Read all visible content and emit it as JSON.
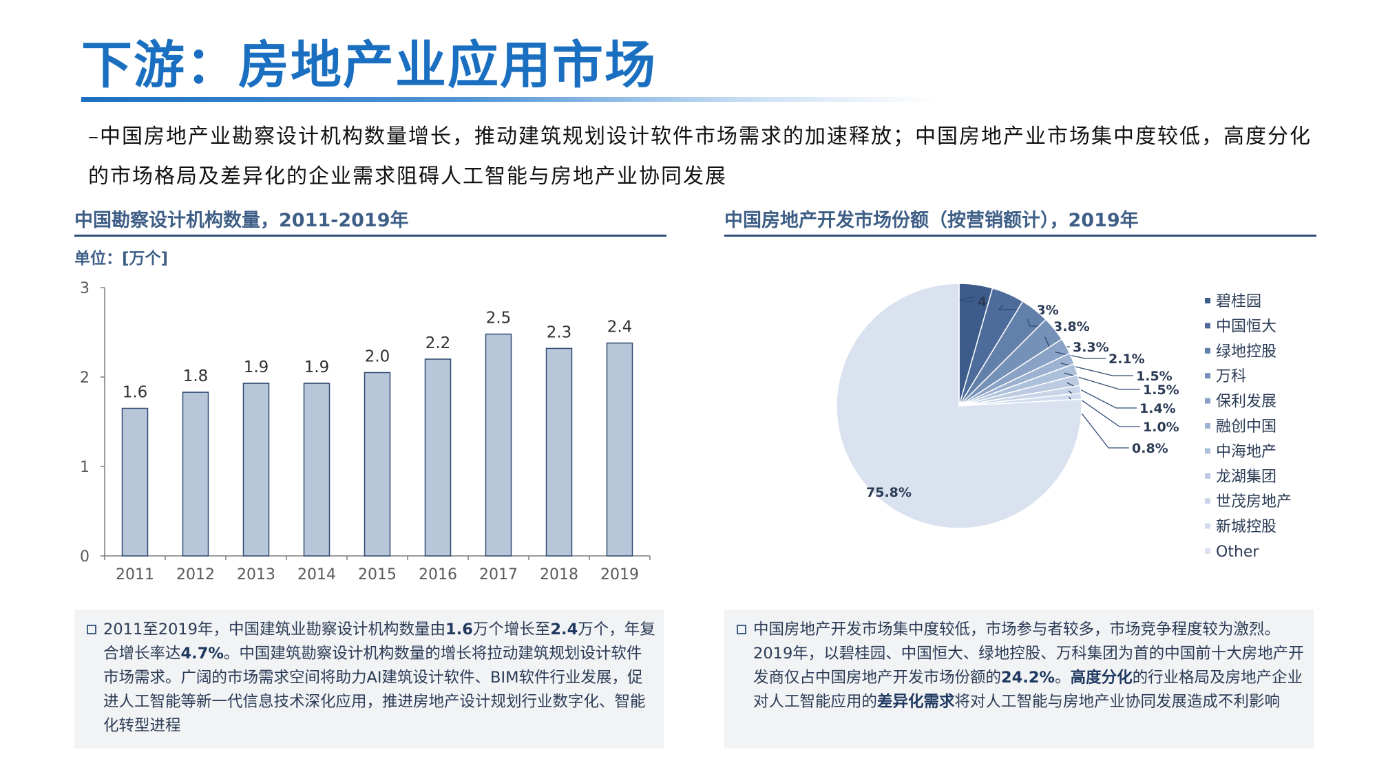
{
  "page": {
    "title": "下游：房地产业应用市场",
    "intro": "–中国房地产业勘察设计机构数量增长，推动建筑规划设计软件市场需求的加速释放；中国房地产业市场集中度较低，高度分化的市场格局及差异化的企业需求阻碍人工智能与房地产业协同发展"
  },
  "left": {
    "heading": "中国勘察设计机构数量，2011-2019年",
    "unit": "单位：[万个]",
    "note_parts": [
      {
        "text": "2011至2019年，中国建筑业勘察设计机构数量由",
        "bold": false
      },
      {
        "text": "1.6",
        "bold": true
      },
      {
        "text": "万个增长至",
        "bold": false
      },
      {
        "text": "2.4",
        "bold": true
      },
      {
        "text": "万个，年复合增长率达",
        "bold": false
      },
      {
        "text": "4.7%",
        "bold": true
      },
      {
        "text": "。中国建筑勘察设计机构数量的增长将拉动建筑规划设计软件市场需求。广阔的市场需求空间将助力AI建筑设计软件、BIM软件行业发展，促进人工智能等新一代信息技术深化应用，推进房地产设计规划行业数字化、智能化转型进程",
        "bold": false
      }
    ]
  },
  "right": {
    "heading": "中国房地产开发市场份额（按营销额计），2019年",
    "note_parts": [
      {
        "text": "中国房地产开发市场集中度较低，市场参与者较多，市场竞争程度较为激烈。2019年，以碧桂园、中国恒大、绿地控股、万科集团为首的中国前十大房地产开发商仅占中国房地产开发市场份额的",
        "bold": false
      },
      {
        "text": "24.2%",
        "bold": true
      },
      {
        "text": "。",
        "bold": false
      },
      {
        "text": "高度分化",
        "bold": true
      },
      {
        "text": "的行业格局及房地产企业对人工智能应用的",
        "bold": false
      },
      {
        "text": "差异化需求",
        "bold": true
      },
      {
        "text": "将对人工智能与房地产业协同发展造成不利影响",
        "bold": false
      }
    ]
  },
  "chart_data": [
    {
      "type": "bar",
      "title": "中国勘察设计机构数量，2011-2019年",
      "ylabel": "单位：[万个]",
      "categories": [
        "2011",
        "2012",
        "2013",
        "2014",
        "2015",
        "2016",
        "2017",
        "2018",
        "2019"
      ],
      "values": [
        1.65,
        1.83,
        1.93,
        1.93,
        2.05,
        2.2,
        2.48,
        2.32,
        2.38
      ],
      "data_labels": [
        "1.6",
        "1.8",
        "1.9",
        "1.9",
        "2.0",
        "2.2",
        "2.5",
        "2.3",
        "2.4"
      ],
      "yticks": [
        "0",
        "1",
        "2",
        "3"
      ],
      "ylim": [
        0,
        3
      ],
      "grid": false,
      "bar_color": "#b8c6da",
      "bar_edge_color": "#2f4a70"
    },
    {
      "type": "pie",
      "title": "中国房地产开发市场份额（按营销额计），2019年",
      "labels": [
        "碧桂园",
        "中国恒大",
        "绿地控股",
        "万科",
        "保利发展",
        "融创中国",
        "中海地产",
        "龙湖集团",
        "世茂房地产",
        "新城控股",
        "Other"
      ],
      "values": [
        4.4,
        4.3,
        3.8,
        3.3,
        2.1,
        1.5,
        1.5,
        1.4,
        1.0,
        0.8,
        75.8
      ],
      "value_labels": [
        "4.4%",
        "4.3%",
        "3.8%",
        "3.3%",
        "2.1%",
        "1.5%",
        "1.5%",
        "1.4%",
        "1.0%",
        "0.8%",
        "75.8%"
      ],
      "colors": [
        "#3d5b8b",
        "#4e6c9b",
        "#6280aa",
        "#7591b7",
        "#8aa2c5",
        "#9db2d0",
        "#adc0da",
        "#bccbe2",
        "#c8d4e8",
        "#d2dcee",
        "#dae2f0"
      ],
      "legend_position": "right"
    }
  ]
}
